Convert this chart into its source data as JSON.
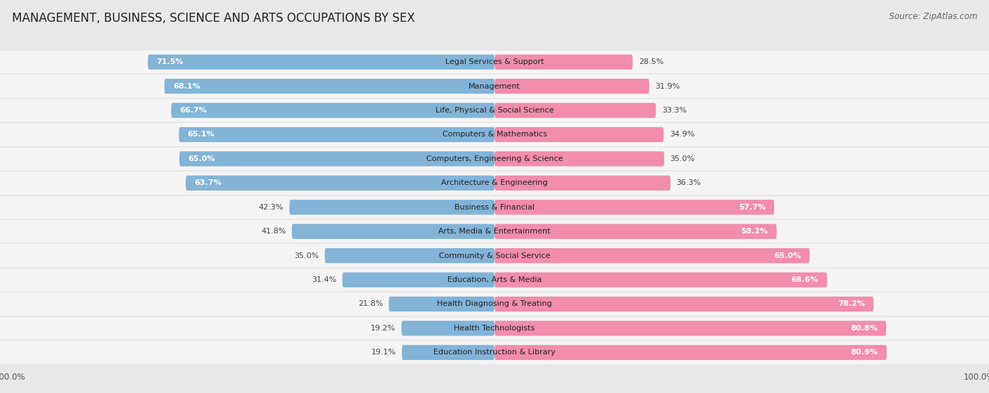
{
  "title": "MANAGEMENT, BUSINESS, SCIENCE AND ARTS OCCUPATIONS BY SEX",
  "source": "Source: ZipAtlas.com",
  "categories": [
    "Legal Services & Support",
    "Management",
    "Life, Physical & Social Science",
    "Computers & Mathematics",
    "Computers, Engineering & Science",
    "Architecture & Engineering",
    "Business & Financial",
    "Arts, Media & Entertainment",
    "Community & Social Service",
    "Education, Arts & Media",
    "Health Diagnosing & Treating",
    "Health Technologists",
    "Education Instruction & Library"
  ],
  "male": [
    71.5,
    68.1,
    66.7,
    65.1,
    65.0,
    63.7,
    42.3,
    41.8,
    35.0,
    31.4,
    21.8,
    19.2,
    19.1
  ],
  "female": [
    28.5,
    31.9,
    33.3,
    34.9,
    35.0,
    36.3,
    57.7,
    58.2,
    65.0,
    68.6,
    78.2,
    80.8,
    80.9
  ],
  "male_color": "#82b4d8",
  "female_color": "#f28dac",
  "bg_color": "#e8e8e8",
  "bar_bg_color": "#f5f5f5",
  "row_sep_color": "#d0d0d0",
  "title_fontsize": 12,
  "source_fontsize": 8.5,
  "label_fontsize": 8,
  "pct_fontsize": 8,
  "legend_fontsize": 9
}
